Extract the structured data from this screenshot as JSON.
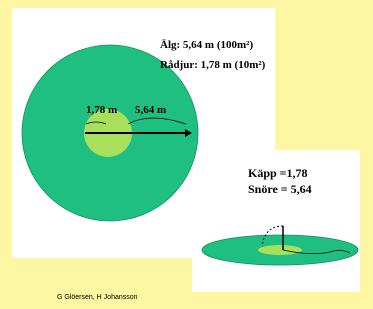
{
  "title_lines": [
    "Älg: 5,64 m (100m²)",
    "Rådjur: 1,78 m (10m²)"
  ],
  "circle_labels": {
    "inner": "1,78 m",
    "outer": "5,64 m"
  },
  "formula_lines": [
    "Käpp =1,78",
    "Snöre = 5,64"
  ],
  "footer": "G Glöersen, H Johansson"
}
